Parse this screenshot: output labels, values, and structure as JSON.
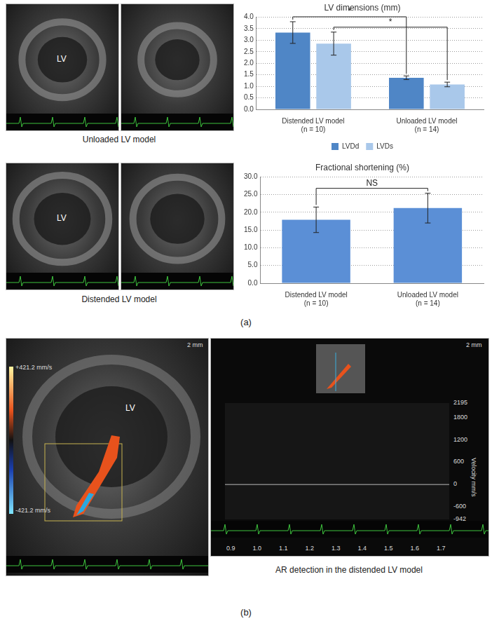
{
  "panel_a": {
    "label": "(a)",
    "images": [
      {
        "caption": "Unloaded LV model",
        "label": "LV"
      },
      {
        "caption": "Distended LV model",
        "label": "LV"
      }
    ]
  },
  "chart_data": [
    {
      "type": "bar",
      "title": "LV dimensions (mm)",
      "categories": [
        [
          "Distended LV model",
          "(n = 10)"
        ],
        [
          "Unloaded LV model",
          "(n = 14)"
        ]
      ],
      "series": [
        {
          "name": "LVDd",
          "color": "#4f86c6",
          "values": [
            3.33,
            1.37
          ],
          "errors": [
            0.47,
            0.08
          ]
        },
        {
          "name": "LVDs",
          "color": "#a9c8ea",
          "values": [
            2.85,
            1.08
          ],
          "errors": [
            0.5,
            0.1
          ]
        }
      ],
      "ylim": [
        0,
        4
      ],
      "yticks": [
        {
          "value": 0,
          "label": "0.0"
        },
        {
          "value": 0.5,
          "label": "0.5"
        },
        {
          "value": 1,
          "label": "1.0"
        },
        {
          "value": 1.5,
          "label": "1.5"
        },
        {
          "value": 2,
          "label": "2.0"
        },
        {
          "value": 2.5,
          "label": "2.5"
        },
        {
          "value": 3,
          "label": "3.0"
        },
        {
          "value": 3.5,
          "label": "3.5"
        },
        {
          "value": 4,
          "label": "4.0"
        }
      ],
      "grid": true,
      "legend": "bottom",
      "comparisons": [
        {
          "series": "LVDd",
          "text": "*"
        },
        {
          "series": "LVDs",
          "text": "*"
        }
      ]
    },
    {
      "type": "bar",
      "title": "Fractional shortening (%)",
      "categories": [
        [
          "Distended LV model",
          "(n = 10)"
        ],
        [
          "Unloaded LV model",
          "(n = 14)"
        ]
      ],
      "values": [
        17.9,
        21.2
      ],
      "errors": [
        3.6,
        4.2
      ],
      "color": "#5b8fd6",
      "ylim": [
        0,
        30
      ],
      "yticks": [
        {
          "value": 0,
          "label": "0.0"
        },
        {
          "value": 5,
          "label": "5.0"
        },
        {
          "value": 10,
          "label": "10.0"
        },
        {
          "value": 15,
          "label": "15.0"
        },
        {
          "value": 20,
          "label": "20.0"
        },
        {
          "value": 25,
          "label": "25.0"
        },
        {
          "value": 30,
          "label": "30.0"
        }
      ],
      "grid": true,
      "comparisons": [
        {
          "text": "NS"
        }
      ]
    }
  ],
  "panel_b": {
    "label": "(b)",
    "caption": "AR detection in the distended LV model",
    "color_flow": {
      "label": "LV",
      "scale_top": "+421.2 mm/s",
      "scale_bottom": "-421.2 mm/s",
      "scale": "2 mm"
    },
    "doppler": {
      "scale": "2 mm",
      "velocity_unit": "Velocity mm/s",
      "velocity_ticks": [
        "2195",
        "1800",
        "1200",
        "600",
        "0",
        "-600",
        "-942"
      ],
      "time_ticks": [
        "0.9",
        "1.0",
        "1.1",
        "1.2",
        "1.3",
        "1.4",
        "1.5",
        "1.6",
        "1.7"
      ]
    }
  }
}
